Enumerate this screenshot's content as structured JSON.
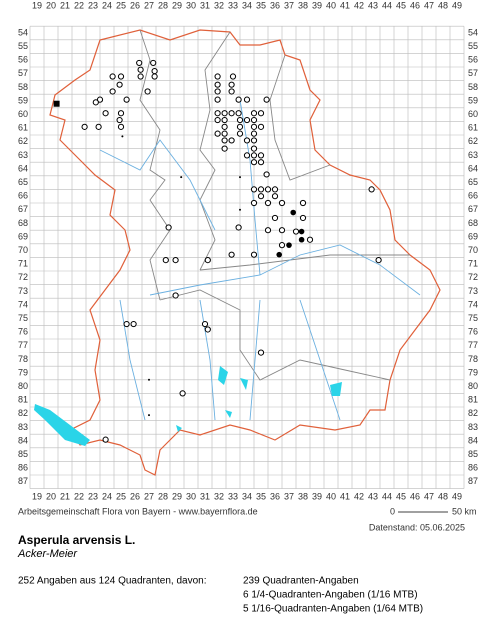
{
  "map": {
    "columns": [
      19,
      20,
      21,
      22,
      23,
      24,
      25,
      26,
      27,
      28,
      29,
      30,
      31,
      32,
      33,
      34,
      35,
      36,
      37,
      38,
      39,
      40,
      41,
      42,
      43,
      44,
      45,
      46,
      47,
      48,
      49
    ],
    "rows": [
      54,
      55,
      56,
      57,
      58,
      59,
      60,
      61,
      62,
      63,
      64,
      65,
      66,
      67,
      68,
      69,
      70,
      71,
      72,
      73,
      74,
      75,
      76,
      77,
      78,
      79,
      80,
      81,
      82,
      83,
      84,
      85,
      86,
      87
    ],
    "markers": {
      "open": [
        [
          24.4,
          57.2
        ],
        [
          25.0,
          57.2
        ],
        [
          24.9,
          57.8
        ],
        [
          24.4,
          58.3
        ],
        [
          23.5,
          58.9
        ],
        [
          25.4,
          58.9
        ],
        [
          23.2,
          59.1
        ],
        [
          23.9,
          59.9
        ],
        [
          25.0,
          59.9
        ],
        [
          24.9,
          60.4
        ],
        [
          25.0,
          60.9
        ],
        [
          23.4,
          60.9
        ],
        [
          22.4,
          60.9
        ],
        [
          26.3,
          56.2
        ],
        [
          26.4,
          56.7
        ],
        [
          27.3,
          56.2
        ],
        [
          27.4,
          56.8
        ],
        [
          26.4,
          57.2
        ],
        [
          27.4,
          57.2
        ],
        [
          26.9,
          58.3
        ],
        [
          31.9,
          57.2
        ],
        [
          33.0,
          57.2
        ],
        [
          31.9,
          57.8
        ],
        [
          32.9,
          57.8
        ],
        [
          31.9,
          58.3
        ],
        [
          32.9,
          58.3
        ],
        [
          31.9,
          58.9
        ],
        [
          33.4,
          58.9
        ],
        [
          34.0,
          58.9
        ],
        [
          35.4,
          58.9
        ],
        [
          31.9,
          59.9
        ],
        [
          32.4,
          59.9
        ],
        [
          32.9,
          59.9
        ],
        [
          33.4,
          59.9
        ],
        [
          34.5,
          59.9
        ],
        [
          35.0,
          59.9
        ],
        [
          31.9,
          60.4
        ],
        [
          32.4,
          60.4
        ],
        [
          33.5,
          60.4
        ],
        [
          34.0,
          60.4
        ],
        [
          34.5,
          60.4
        ],
        [
          32.4,
          60.9
        ],
        [
          33.5,
          60.9
        ],
        [
          34.5,
          60.9
        ],
        [
          35.0,
          60.9
        ],
        [
          31.9,
          61.4
        ],
        [
          32.4,
          61.4
        ],
        [
          33.5,
          61.4
        ],
        [
          34.5,
          61.4
        ],
        [
          32.4,
          61.9
        ],
        [
          32.9,
          61.9
        ],
        [
          34.0,
          61.9
        ],
        [
          34.5,
          61.9
        ],
        [
          32.4,
          62.5
        ],
        [
          34.5,
          62.5
        ],
        [
          34.0,
          63.0
        ],
        [
          34.5,
          63.0
        ],
        [
          35.0,
          63.0
        ],
        [
          34.5,
          63.5
        ],
        [
          35.0,
          63.5
        ],
        [
          35.4,
          64.4
        ],
        [
          34.5,
          65.5
        ],
        [
          35.0,
          65.5
        ],
        [
          35.5,
          65.5
        ],
        [
          36.0,
          65.5
        ],
        [
          35.0,
          66.0
        ],
        [
          36.0,
          66.0
        ],
        [
          35.5,
          66.5
        ],
        [
          34.5,
          66.5
        ],
        [
          36.5,
          66.5
        ],
        [
          36.0,
          67.6
        ],
        [
          38.0,
          67.6
        ],
        [
          38.0,
          66.5
        ],
        [
          35.5,
          68.5
        ],
        [
          36.5,
          68.5
        ],
        [
          37.5,
          68.6
        ],
        [
          38.5,
          69.2
        ],
        [
          36.5,
          69.6
        ],
        [
          34.5,
          70.3
        ],
        [
          33.4,
          68.3
        ],
        [
          28.4,
          68.3
        ],
        [
          28.2,
          70.7
        ],
        [
          28.9,
          70.7
        ],
        [
          31.2,
          70.7
        ],
        [
          32.9,
          70.3
        ],
        [
          42.9,
          65.5
        ],
        [
          43.4,
          70.7
        ],
        [
          28.9,
          73.3
        ],
        [
          25.4,
          75.4
        ],
        [
          25.9,
          75.4
        ],
        [
          31.0,
          75.4
        ],
        [
          31.2,
          75.8
        ],
        [
          35.0,
          77.5
        ],
        [
          29.4,
          80.5
        ],
        [
          23.9,
          83.9
        ]
      ],
      "filled": [
        [
          37.3,
          67.2
        ],
        [
          37.0,
          69.6
        ],
        [
          36.3,
          70.3
        ],
        [
          37.9,
          68.6
        ],
        [
          37.9,
          69.2
        ]
      ],
      "square": [
        [
          20.4,
          59.2
        ]
      ],
      "dot": [
        [
          29.3,
          64.6
        ],
        [
          27.0,
          79.5
        ],
        [
          27.0,
          82.1
        ],
        [
          33.5,
          67.0
        ],
        [
          25.1,
          61.6
        ],
        [
          33.5,
          64.6
        ]
      ]
    },
    "footer": "Arbeitsgemeinschaft Flora von Bayern - www.bayernflora.de",
    "scale_start": "0",
    "scale_end": "50 km",
    "date": "Datenstand: 05.06.2025",
    "title": "Asperula arvensis L.",
    "subtitle": "Acker-Meier",
    "summary": "252 Angaben aus 124 Quadranten, davon:",
    "legend": [
      "239 Quadranten-Angaben",
      "6 1/4-Quadranten-Angaben (1/16 MTB)",
      "5 1/16-Quadranten-Angaben (1/64 MTB)"
    ]
  }
}
